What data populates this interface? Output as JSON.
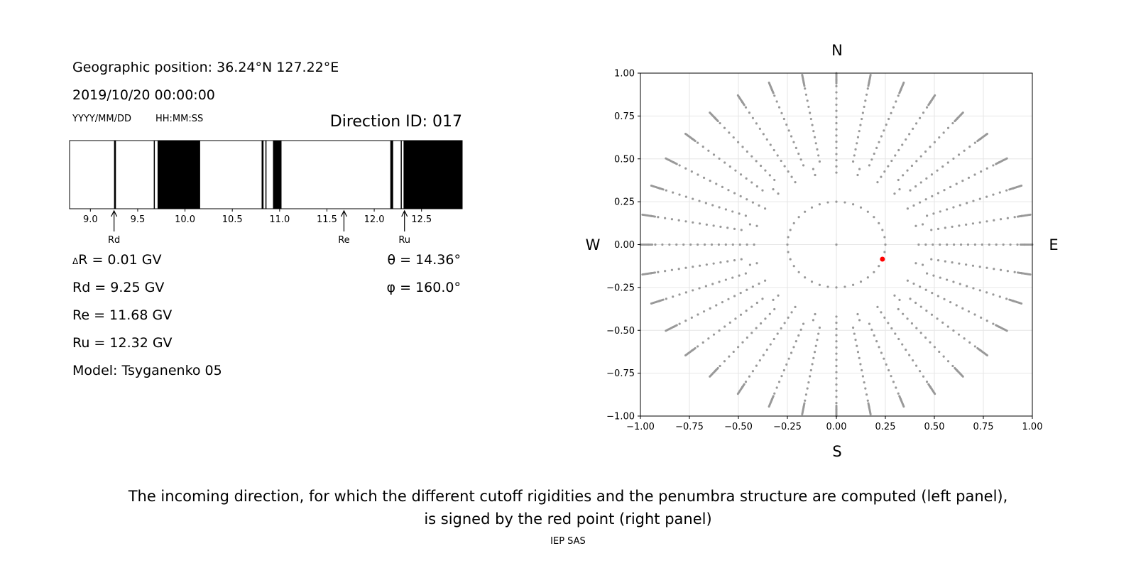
{
  "info": {
    "geo_position": "Geographic position: 36.24°N 127.22°E",
    "datetime": "2019/10/20 00:00:00",
    "date_format": "YYYY/MM/DD",
    "time_format": "HH:MM:SS",
    "direction_id": "Direction ID: 017"
  },
  "results": {
    "delta_r": "R = 0.01 GV",
    "delta_symbol": "Δ",
    "rd": "Rd = 9.25 GV",
    "re": "Re = 11.68 GV",
    "ru": "Ru = 12.32 GV",
    "model": "Model: Tsyganenko 05",
    "theta_symbol": "θ",
    "theta": " = 14.36°",
    "phi_symbol": "φ",
    "phi": " = 160.0°"
  },
  "compass": {
    "n": "N",
    "s": "S",
    "w": "W",
    "e": "E"
  },
  "caption": {
    "line1": "The incoming direction, for which the different cutoff rigidities and the penumbra structure are computed (left panel),",
    "line2": "is signed by the red point (right panel)"
  },
  "footer": "IEP SAS",
  "chart_data": [
    {
      "type": "bar",
      "description_of_marks": "penumbra band: black segments = forbidden rigidity intervals",
      "xlim": [
        8.78,
        12.93
      ],
      "xticks": [
        9.0,
        9.5,
        10.0,
        10.5,
        11.0,
        11.5,
        12.0,
        12.5
      ],
      "xtick_labels": [
        "9.0",
        "9.5",
        "10.0",
        "10.5",
        "11.0",
        "11.5",
        "12.0",
        "12.5"
      ],
      "forbidden_intervals": [
        [
          9.25,
          9.27
        ],
        [
          9.67,
          9.68
        ],
        [
          9.71,
          10.16
        ],
        [
          10.81,
          10.83
        ],
        [
          10.85,
          10.86
        ],
        [
          10.93,
          11.02
        ],
        [
          12.17,
          12.2
        ],
        [
          12.28,
          12.29
        ],
        [
          12.31,
          12.93
        ]
      ],
      "markers": [
        {
          "label": "Rd",
          "value": 9.25
        },
        {
          "label": "Re",
          "value": 11.68
        },
        {
          "label": "Ru",
          "value": 12.32
        }
      ],
      "bar_color": "#000000"
    },
    {
      "type": "scatter",
      "xlim": [
        -1.0,
        1.0
      ],
      "ylim": [
        -1.0,
        1.0
      ],
      "xticks": [
        "-1.00",
        "-0.75",
        "-0.50",
        "-0.25",
        "0.00",
        "0.25",
        "0.50",
        "0.75",
        "1.00"
      ],
      "yticks": [
        "-1.00",
        "-0.75",
        "-0.50",
        "-0.25",
        "0.00",
        "0.25",
        "0.50",
        "0.75",
        "1.00"
      ],
      "grid": true,
      "grid_points": {
        "zenith_angles_deg": [
          15,
          25,
          35,
          45,
          55,
          65,
          75,
          85,
          95,
          105,
          115,
          125,
          135,
          145,
          155,
          165,
          175
        ],
        "inner_ring_radius": 0.25,
        "azimuth_step_deg": 10,
        "color": "#999999"
      },
      "highlight": {
        "x": 0.235,
        "y": -0.085,
        "color": "#ff0000"
      }
    }
  ]
}
